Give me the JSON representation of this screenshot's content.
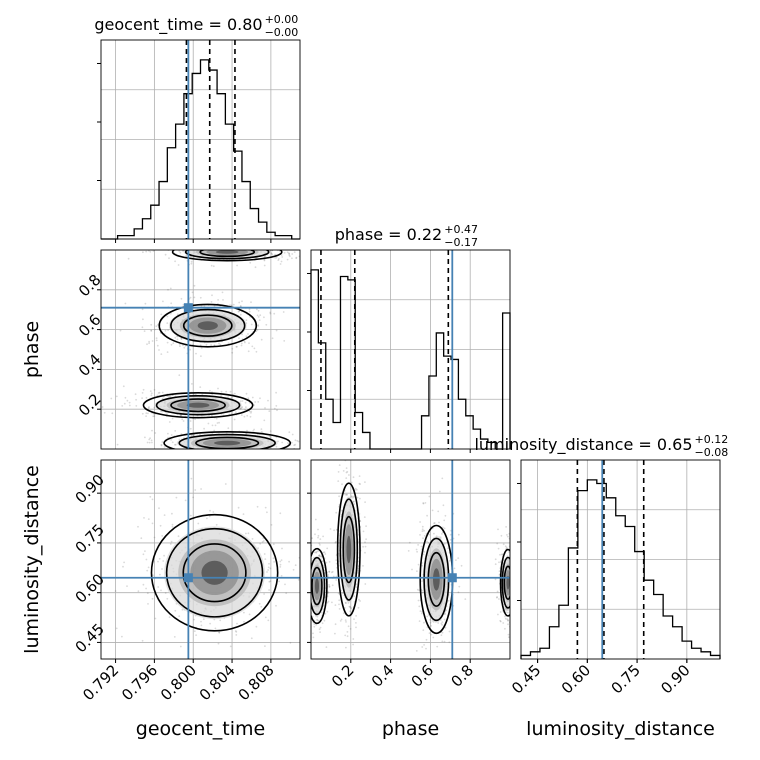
{
  "chart_data": {
    "type": "corner",
    "parameters": [
      "geocent_time",
      "phase",
      "luminosity_distance"
    ],
    "axis_labels": {
      "geocent_time": "geocent_time",
      "phase": "phase",
      "luminosity_distance": "luminosity_distance"
    },
    "ranges": {
      "geocent_time": [
        0.7905,
        0.811
      ],
      "phase": [
        0.0,
        1.0
      ],
      "luminosity_distance": [
        0.4,
        1.0
      ]
    },
    "ticks": {
      "geocent_time": {
        "values": [
          0.792,
          0.796,
          0.8,
          0.804,
          0.808
        ],
        "labels": [
          "0.792",
          "0.796",
          "0.800",
          "0.804",
          "0.808"
        ]
      },
      "phase": {
        "values": [
          0.2,
          0.4,
          0.6,
          0.8
        ],
        "labels": [
          "0.2",
          "0.4",
          "0.6",
          "0.8"
        ]
      },
      "luminosity_distance": {
        "values": [
          0.45,
          0.6,
          0.75,
          0.9
        ],
        "labels": [
          "0.45",
          "0.60",
          "0.75",
          "0.90"
        ]
      }
    },
    "truths": {
      "geocent_time": 0.7995,
      "phase": 0.71,
      "luminosity_distance": 0.645
    },
    "titles": {
      "geocent_time": {
        "name": "geocent_time",
        "median": "0.80",
        "plus": "+0.00",
        "minus": "−0.00"
      },
      "phase": {
        "name": "phase",
        "median": "0.22",
        "plus": "+0.47",
        "minus": "−0.17"
      },
      "luminosity_distance": {
        "name": "luminosity_distance",
        "median": "0.65",
        "plus": "+0.12",
        "minus": "−0.08"
      }
    },
    "quantiles": {
      "geocent_time": [
        0.7993,
        0.8017,
        0.8043
      ],
      "phase": [
        0.05,
        0.22,
        0.69
      ],
      "luminosity_distance": [
        0.57,
        0.65,
        0.77
      ]
    },
    "histograms": {
      "geocent_time": {
        "edges_range": [
          0.7905,
          0.811
        ],
        "counts": [
          0,
          0,
          1,
          1,
          3,
          6,
          10,
          17,
          27,
          34,
          43,
          49,
          53,
          50,
          43,
          34,
          26,
          17,
          9,
          5,
          2,
          1,
          1,
          0
        ]
      },
      "phase": {
        "edges_range": [
          0.0,
          1.0
        ],
        "counts": [
          54,
          32,
          15,
          8,
          52,
          51,
          11,
          5,
          0,
          0,
          0,
          0,
          0,
          0,
          0,
          10,
          22,
          35,
          28,
          27,
          15,
          10,
          6,
          3,
          2,
          0,
          41
        ]
      },
      "luminosity_distance": {
        "edges_range": [
          0.4,
          1.0
        ],
        "counts": [
          1,
          2,
          3,
          9,
          15,
          31,
          47,
          50,
          49,
          45,
          40,
          37,
          30,
          22,
          18,
          12,
          9,
          5,
          3,
          2,
          1
        ]
      }
    },
    "contours_2d": [
      {
        "x": "geocent_time",
        "y": "phase",
        "blobs": [
          {
            "cx": 0.8035,
            "cy": 0.03,
            "rx": 0.0052,
            "ry": 0.045
          },
          {
            "cx": 0.8005,
            "cy": 0.22,
            "rx": 0.0045,
            "ry": 0.05
          },
          {
            "cx": 0.8015,
            "cy": 0.62,
            "rx": 0.004,
            "ry": 0.085
          },
          {
            "cx": 0.8035,
            "cy": 0.99,
            "rx": 0.0045,
            "ry": 0.035
          }
        ]
      },
      {
        "x": "geocent_time",
        "y": "luminosity_distance",
        "blobs": [
          {
            "cx": 0.8022,
            "cy": 0.66,
            "rx": 0.0052,
            "ry": 0.14
          }
        ]
      },
      {
        "x": "phase",
        "y": "luminosity_distance",
        "blobs": [
          {
            "cx": 0.03,
            "cy": 0.62,
            "rx": 0.04,
            "ry": 0.09
          },
          {
            "cx": 0.19,
            "cy": 0.73,
            "rx": 0.045,
            "ry": 0.16
          },
          {
            "cx": 0.63,
            "cy": 0.64,
            "rx": 0.065,
            "ry": 0.13
          },
          {
            "cx": 0.99,
            "cy": 0.63,
            "rx": 0.03,
            "ry": 0.08
          }
        ]
      }
    ],
    "colors": {
      "truth": "#4682b4",
      "hist": "#000000",
      "grid": "#b0b0b0",
      "scatter": "#555555"
    }
  }
}
